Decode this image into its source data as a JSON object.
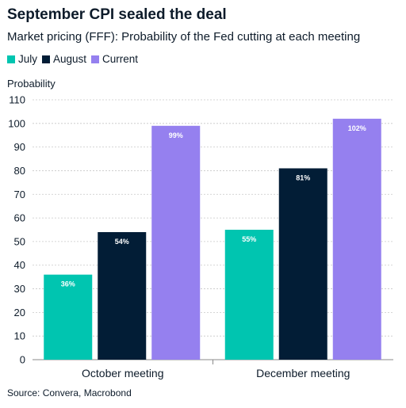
{
  "header": {
    "title": "September CPI sealed the deal",
    "subtitle": "Market pricing (FFF): Probability of the Fed cutting at each meeting"
  },
  "footer": {
    "source": "Source: Convera, Macrobond"
  },
  "chart_data": {
    "type": "bar",
    "title": "September CPI sealed the deal",
    "subtitle": "Market pricing (FFF): Probability of the Fed cutting at each meeting",
    "ylabel": "Probability",
    "xlabel": "",
    "categories": [
      "October meeting",
      "December meeting"
    ],
    "series": [
      {
        "name": "July",
        "color": "#00c5b0",
        "values": [
          36,
          55
        ],
        "labels": [
          "36%",
          "55%"
        ]
      },
      {
        "name": "August",
        "color": "#021d36",
        "values": [
          54,
          81
        ],
        "labels": [
          "54%",
          "81%"
        ]
      },
      {
        "name": "Current",
        "color": "#9580ef",
        "values": [
          99,
          102
        ],
        "labels": [
          "99%",
          "102%"
        ]
      }
    ],
    "ylim": [
      0,
      110
    ],
    "yticks": [
      0,
      10,
      20,
      30,
      40,
      50,
      60,
      70,
      80,
      90,
      100,
      110
    ],
    "grid": true,
    "legend_position": "top-left"
  }
}
